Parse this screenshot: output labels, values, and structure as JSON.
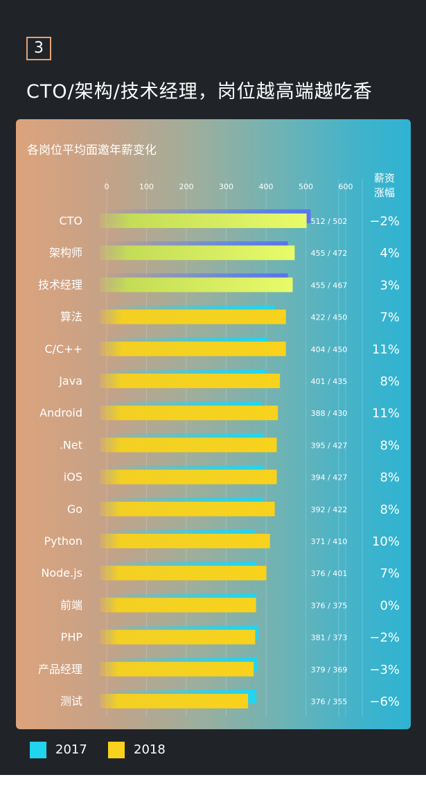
{
  "badge": "3",
  "headline": "CTO/架构/技术经理，岗位越高端越吃香",
  "chart_data": {
    "type": "bar",
    "orientation": "horizontal",
    "title": "各岗位平均面邀年薪变化",
    "column_header_line1": "薪资",
    "column_header_line2": "涨幅",
    "x_ticks": [
      "0",
      "100",
      "200",
      "300",
      "400",
      "500",
      "600"
    ],
    "xlim": [
      0,
      600
    ],
    "grid": true,
    "legend_position": "bottom-left",
    "categories": [
      "CTO",
      "架构师",
      "技术经理",
      "算法",
      "C/C++",
      "Java",
      "Android",
      ".Net",
      "iOS",
      "Go",
      "Python",
      "Node.js",
      "前端",
      "PHP",
      "产品经理",
      "测试"
    ],
    "series": [
      {
        "name": "2017",
        "color": "#22d5ef",
        "values": [
          512,
          455,
          455,
          422,
          404,
          401,
          388,
          395,
          394,
          392,
          371,
          376,
          376,
          381,
          379,
          376
        ]
      },
      {
        "name": "2018",
        "color": "#f8d21c",
        "values": [
          502,
          472,
          467,
          450,
          450,
          435,
          430,
          427,
          427,
          422,
          410,
          401,
          375,
          373,
          369,
          355
        ]
      }
    ],
    "value_labels": [
      "512 / 502",
      "455 / 472",
      "455 / 467",
      "422 / 450",
      "404 / 450",
      "401 / 435",
      "388 / 430",
      "395 / 427",
      "394 / 427",
      "392 / 422",
      "371 / 410",
      "376 / 401",
      "376 / 375",
      "381 / 373",
      "379 / 369",
      "376 / 355"
    ],
    "growth_labels": [
      "−2%",
      "4%",
      "3%",
      "7%",
      "11%",
      "8%",
      "11%",
      "8%",
      "8%",
      "8%",
      "10%",
      "7%",
      "0%",
      "−2%",
      "−3%",
      "−6%"
    ],
    "highlight_count": 3,
    "highlight_colors": {
      "bar_2017": "#5b73f2",
      "bar_2018_start": "#c4dd56",
      "bar_2018_end": "#e8fb6a"
    }
  },
  "legend": [
    {
      "label": "2017",
      "color": "#22d5ef"
    },
    {
      "label": "2018",
      "color": "#f8d21c"
    }
  ]
}
